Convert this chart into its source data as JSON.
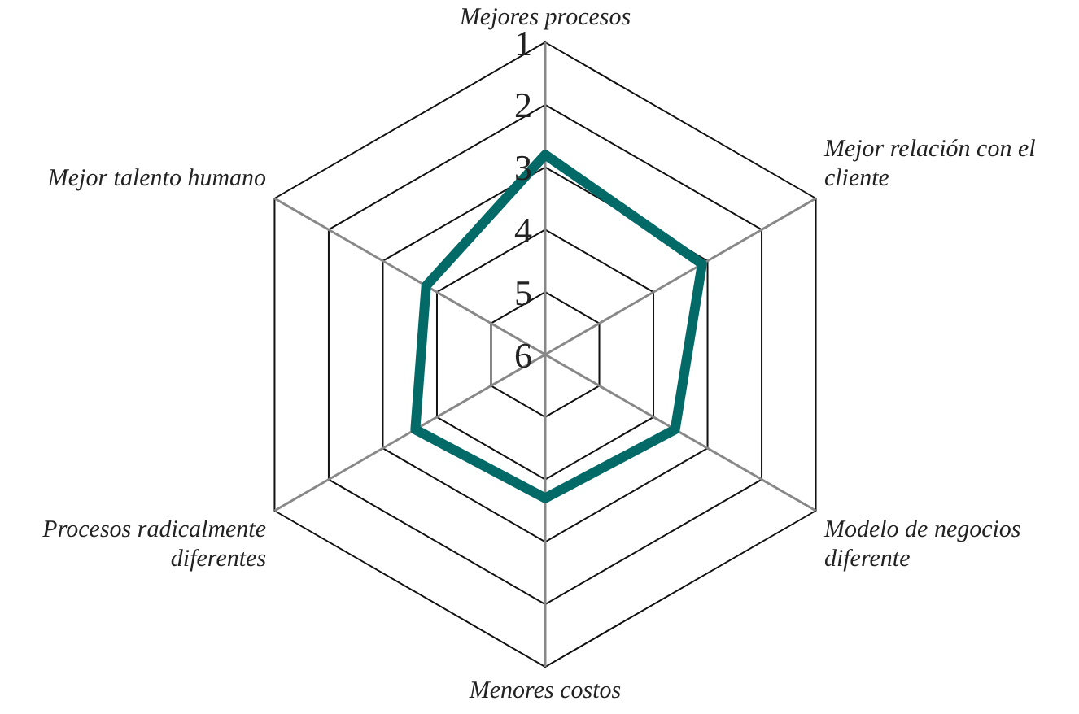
{
  "chart_data": {
    "type": "radar",
    "categories": [
      "Mejores procesos",
      "Mejor relación con el cliente",
      "Modelo de negocios diferente",
      "Menores costos",
      "Procesos radicalmente diferentes",
      "Mejor talento humano"
    ],
    "series": [
      {
        "color": "#046a67",
        "values": [
          2.8,
          3.1,
          3.6,
          3.7,
          3.6,
          3.8
        ]
      }
    ],
    "ylim": [
      6,
      1
    ],
    "yticks": [
      1,
      2,
      3,
      4,
      5,
      6
    ],
    "grid": true,
    "legend": false,
    "marker": "none",
    "line_style": "solid"
  }
}
